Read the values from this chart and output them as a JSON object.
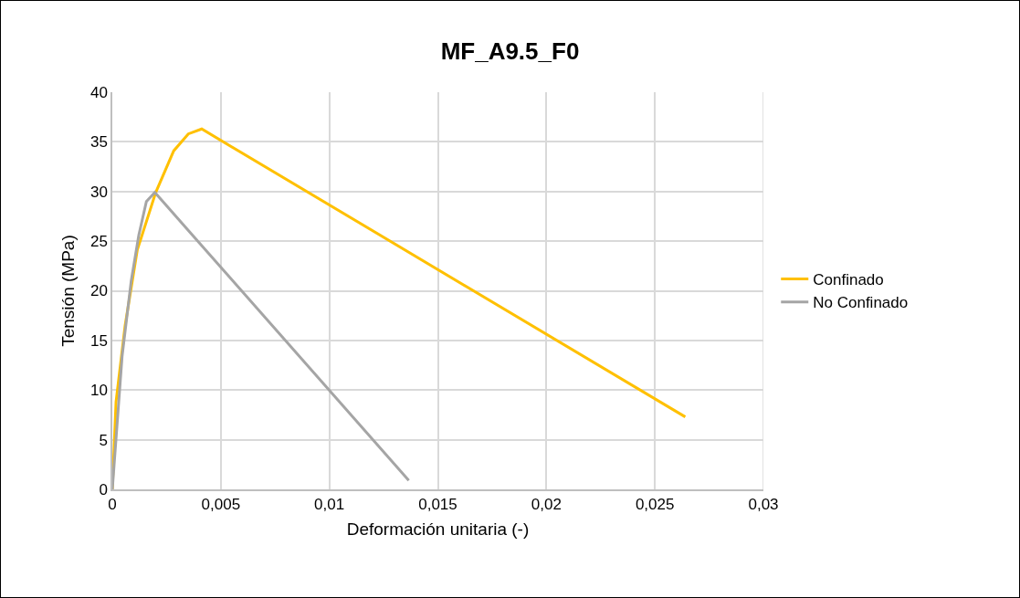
{
  "chart_data": {
    "type": "line",
    "title": "MF_A9.5_F0",
    "xlabel": "Deformación unitaria (-)",
    "ylabel": "Tensión (MPa)",
    "xlim": [
      0,
      0.03
    ],
    "xticks": [
      0,
      {
        "value": 0.005,
        "label": "0,005"
      },
      {
        "value": 0.01,
        "label": "0,01"
      },
      {
        "value": 0.015,
        "label": "0,015"
      },
      {
        "value": 0.02,
        "label": "0,02"
      },
      {
        "value": 0.025,
        "label": "0,025"
      },
      {
        "value": 0.03,
        "label": "0,03"
      }
    ],
    "ylim": [
      0,
      40
    ],
    "yticks": [
      0,
      5,
      10,
      15,
      20,
      25,
      30,
      35,
      40
    ],
    "grid": true,
    "legend": "right",
    "marker": "none",
    "line_style": "solid",
    "series": [
      {
        "name": "Confinado",
        "color": "#ffc000",
        "x": [
          0,
          0.00017,
          0.00059,
          0.00115,
          0.002,
          0.00283,
          0.0035,
          0.00412,
          0.0264
        ],
        "values": [
          0,
          8.8,
          16.5,
          24.1,
          29.9,
          34.1,
          35.8,
          36.3,
          7.3
        ]
      },
      {
        "name": "No Confinado",
        "color": "#a5a5a5",
        "x": [
          0,
          0.00045,
          0.00087,
          0.00122,
          0.00157,
          0.00196,
          0.01366
        ],
        "values": [
          0,
          13.4,
          21.0,
          25.6,
          29.0,
          29.9,
          0.9
        ]
      }
    ]
  }
}
